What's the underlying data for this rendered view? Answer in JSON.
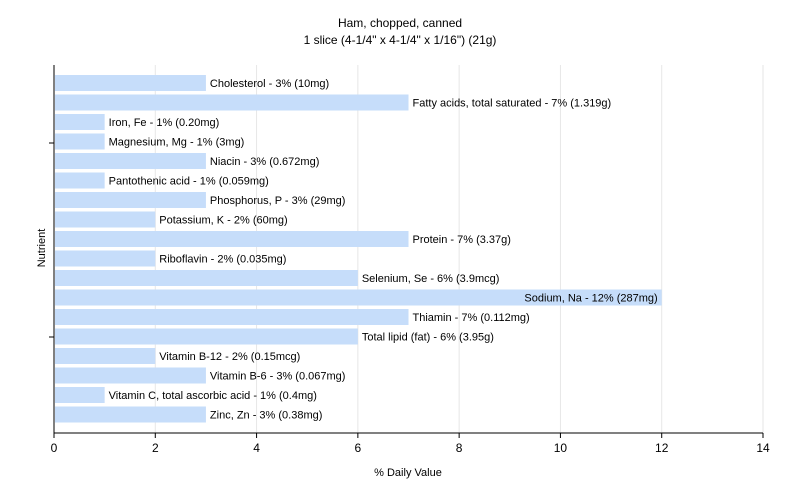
{
  "chart_data": {
    "type": "bar",
    "orientation": "horizontal",
    "title": "Ham, chopped, canned",
    "subtitle": "1 slice (4-1/4\" x 4-1/4\" x 1/16\") (21g)",
    "xlabel": "% Daily Value",
    "ylabel": "Nutrient",
    "xlim": [
      0,
      14
    ],
    "xticks": [
      0,
      2,
      4,
      6,
      8,
      10,
      12,
      14
    ],
    "grid": "vertical",
    "bar_color": "#c6ddfa",
    "categories": [
      "Cholesterol",
      "Fatty acids, total saturated",
      "Iron, Fe",
      "Magnesium, Mg",
      "Niacin",
      "Pantothenic acid",
      "Phosphorus, P",
      "Potassium, K",
      "Protein",
      "Riboflavin",
      "Selenium, Se",
      "Sodium, Na",
      "Thiamin",
      "Total lipid (fat)",
      "Vitamin B-12",
      "Vitamin B-6",
      "Vitamin C, total ascorbic acid",
      "Zinc, Zn"
    ],
    "values": [
      3,
      7,
      1,
      1,
      3,
      1,
      3,
      2,
      7,
      2,
      6,
      12,
      7,
      6,
      2,
      3,
      1,
      3
    ],
    "labels": [
      "Cholesterol - 3% (10mg)",
      "Fatty acids, total saturated - 7% (1.319g)",
      "Iron, Fe - 1% (0.20mg)",
      "Magnesium, Mg - 1% (3mg)",
      "Niacin - 3% (0.672mg)",
      "Pantothenic acid - 1% (0.059mg)",
      "Phosphorus, P - 3% (29mg)",
      "Potassium, K - 2% (60mg)",
      "Protein - 7% (3.37g)",
      "Riboflavin - 2% (0.035mg)",
      "Selenium, Se - 6% (3.9mcg)",
      "Sodium, Na - 12% (287mg)",
      "Thiamin - 7% (0.112mg)",
      "Total lipid (fat) - 6% (3.95g)",
      "Vitamin B-12 - 2% (0.15mcg)",
      "Vitamin B-6 - 3% (0.067mg)",
      "Vitamin C, total ascorbic acid - 1% (0.4mg)",
      "Zinc, Zn - 3% (0.38mg)"
    ]
  }
}
